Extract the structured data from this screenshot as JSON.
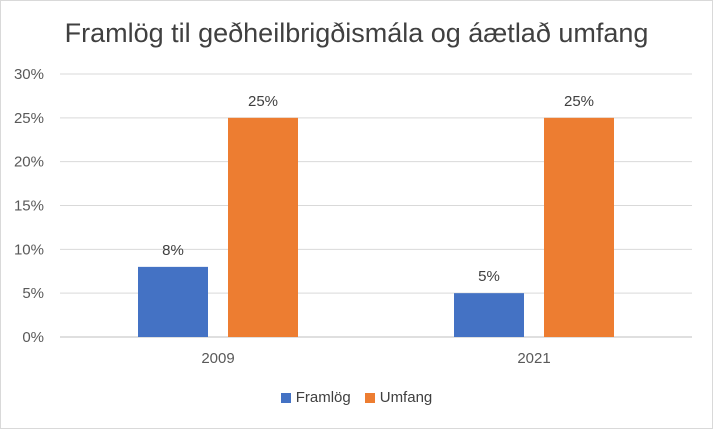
{
  "chart_data": {
    "type": "bar",
    "title": "Framlög til geðheilbrigðismála og áætlað umfang",
    "categories": [
      "2009",
      "2021"
    ],
    "series": [
      {
        "name": "Framlög",
        "values": [
          8,
          5
        ],
        "labels": [
          "8%",
          "5%"
        ],
        "color": "#4472c4"
      },
      {
        "name": "Umfang",
        "values": [
          25,
          25
        ],
        "labels": [
          "25%",
          "25%"
        ],
        "color": "#ed7d31"
      }
    ],
    "ylim": [
      0,
      30
    ],
    "yticks": [
      "0%",
      "5%",
      "10%",
      "15%",
      "20%",
      "25%",
      "30%"
    ],
    "xlabel": "",
    "ylabel": "",
    "grid": true,
    "legend_position": "bottom"
  }
}
